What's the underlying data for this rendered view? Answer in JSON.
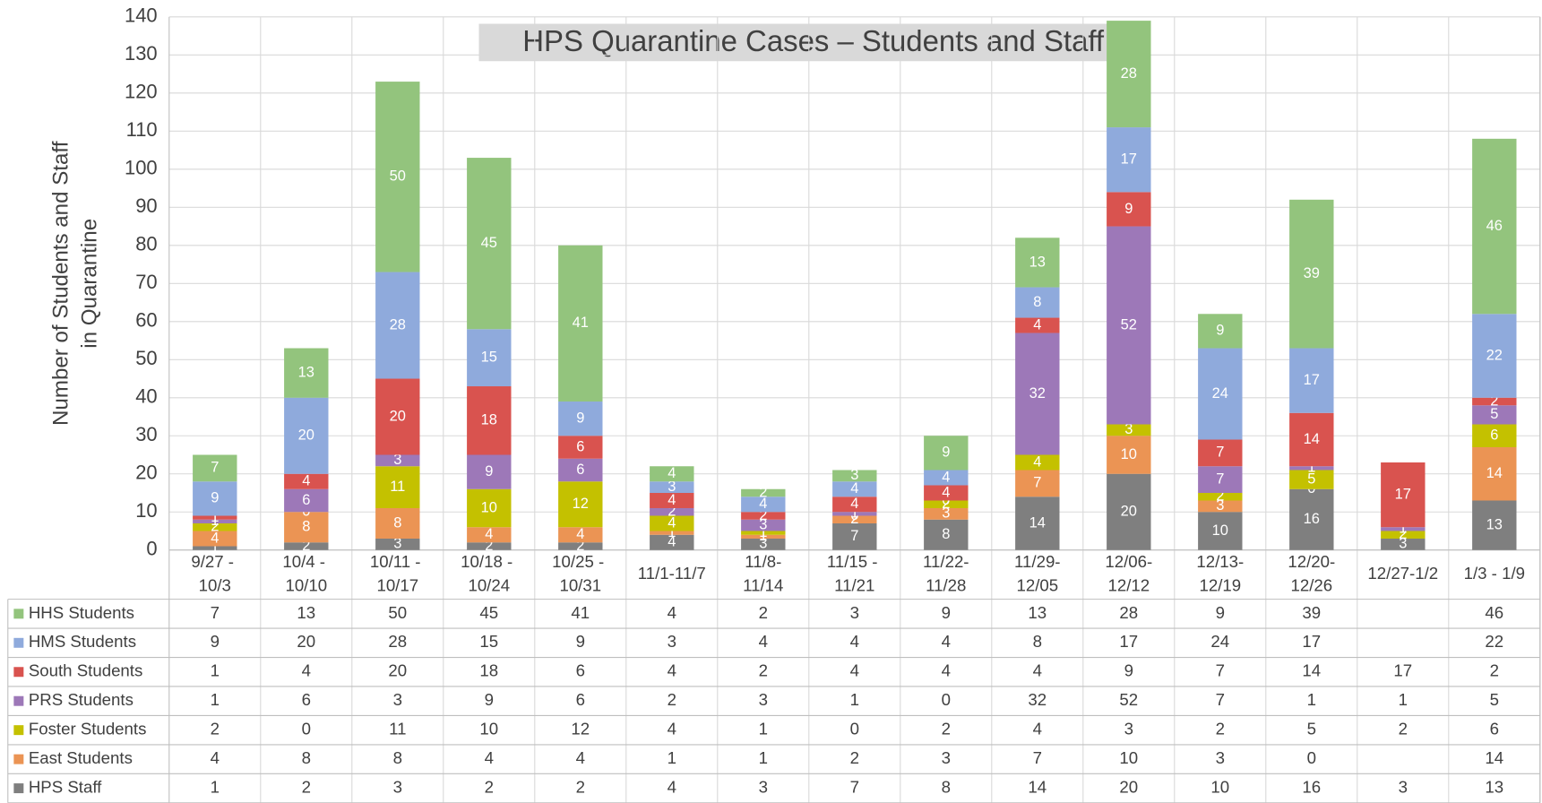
{
  "chart_data": {
    "type": "stacked_bar",
    "title": "HPS Quarantine Cases – Students and Staff",
    "ylabel": [
      "Number of Students and Staff",
      "in Quarantine"
    ],
    "categories": [
      "9/27 - 10/3",
      "10/4 - 10/10",
      "10/11 - 10/17",
      "10/18 - 10/24",
      "10/25 - 10/31",
      "11/1-11/7",
      "11/8-11/14",
      "11/15 - 11/21",
      "11/22-11/28",
      "11/29-12/05",
      "12/06-12/12",
      "12/13-12/19",
      "12/20-12/26",
      "12/27-1/2",
      "1/3 - 1/9"
    ],
    "series": [
      {
        "name": "HPS Staff",
        "color": "#7f7f7f",
        "values": [
          1,
          2,
          3,
          2,
          2,
          4,
          3,
          7,
          8,
          14,
          20,
          10,
          16,
          3,
          13
        ]
      },
      {
        "name": "East Students",
        "color": "#eb9454",
        "values": [
          4,
          8,
          8,
          4,
          4,
          1,
          1,
          2,
          3,
          7,
          10,
          3,
          0,
          null,
          14
        ]
      },
      {
        "name": "Foster Students",
        "color": "#c4c100",
        "values": [
          2,
          0,
          11,
          10,
          12,
          4,
          1,
          0,
          2,
          4,
          3,
          2,
          5,
          2,
          6
        ]
      },
      {
        "name": "PRS Students",
        "color": "#9d78b8",
        "values": [
          1,
          6,
          3,
          9,
          6,
          2,
          3,
          1,
          0,
          32,
          52,
          7,
          1,
          1,
          5
        ]
      },
      {
        "name": "South Students",
        "color": "#d9534f",
        "values": [
          1,
          4,
          20,
          18,
          6,
          4,
          2,
          4,
          4,
          4,
          9,
          7,
          14,
          17,
          2
        ]
      },
      {
        "name": "HMS Students",
        "color": "#8faadc",
        "values": [
          9,
          20,
          28,
          15,
          9,
          3,
          4,
          4,
          4,
          8,
          17,
          24,
          17,
          null,
          22
        ]
      },
      {
        "name": "HHS Students",
        "color": "#93c47d",
        "values": [
          7,
          13,
          50,
          45,
          41,
          4,
          2,
          3,
          9,
          13,
          28,
          9,
          39,
          null,
          46
        ]
      }
    ],
    "ylim": [
      0,
      140
    ],
    "yticks": [
      0,
      10,
      20,
      30,
      40,
      50,
      60,
      70,
      80,
      90,
      100,
      110,
      120,
      130,
      140
    ],
    "grid": true
  }
}
